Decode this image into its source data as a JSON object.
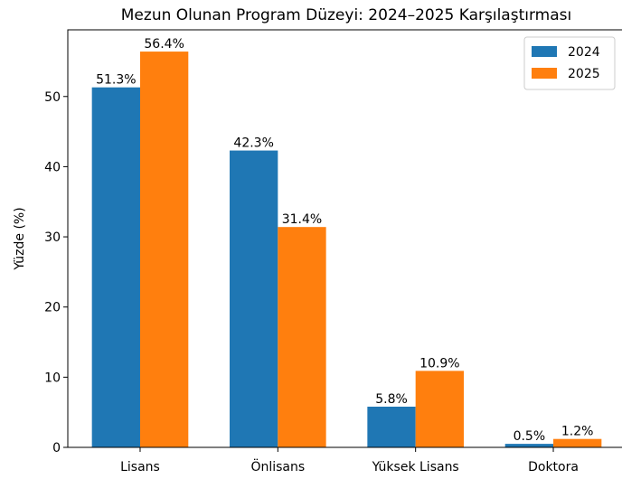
{
  "chart_data": {
    "type": "bar",
    "title": "Mezun Olunan Program Düzeyi: 2024–2025 Karşılaştırması",
    "ylabel": "Yüzde (%)",
    "categories": [
      "Lisans",
      "Önlisans",
      "Yüksek Lisans",
      "Doktora"
    ],
    "series": [
      {
        "name": "2024",
        "color": "#1f77b4",
        "values": [
          51.3,
          42.3,
          5.8,
          0.5
        ],
        "value_labels": [
          "51.3%",
          "42.3%",
          "5.8%",
          "0.5%"
        ]
      },
      {
        "name": "2025",
        "color": "#ff7f0e",
        "values": [
          56.4,
          31.4,
          10.9,
          1.2
        ],
        "value_labels": [
          "56.4%",
          "31.4%",
          "10.9%",
          "1.2%"
        ]
      }
    ],
    "ylim": [
      0,
      59.5
    ],
    "yticks": [
      0,
      10,
      20,
      30,
      40,
      50
    ],
    "legend": "upper right"
  }
}
